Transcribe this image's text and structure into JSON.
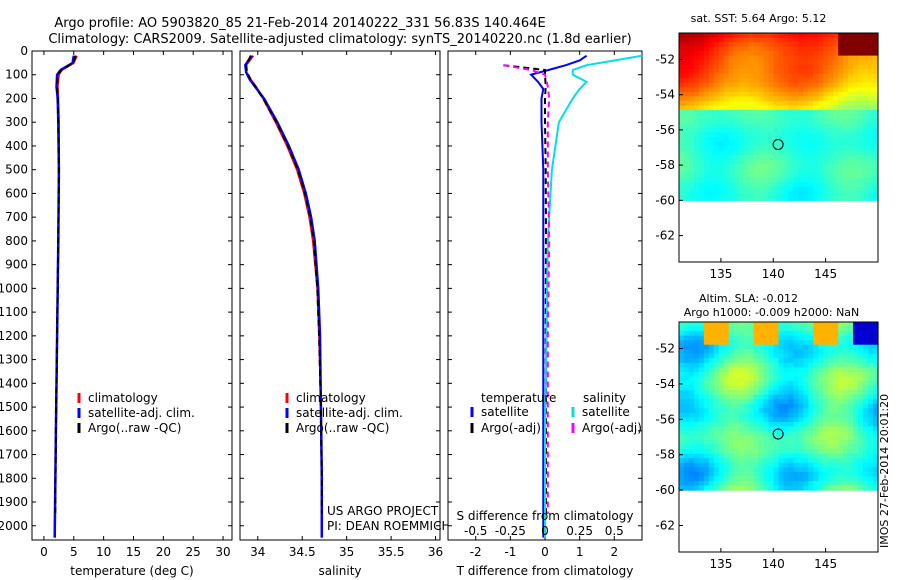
{
  "header": {
    "line1": "Argo profile: AO 5903820_85 21-Feb-2014 20140222_331 56.83S 140.464E",
    "line2": "Climatology: CARS2009. Satellite-adjusted climatology: synTS_20140220.nc (1.8d earlier)"
  },
  "watermark": "IMOS 27-Feb-2014 20:01:20",
  "colors": {
    "climatology": "#ff0000",
    "satellite": "#0000ff",
    "argo": "#000000",
    "sal_satellite": "#00e0e0",
    "sal_argo": "#ff00ff"
  },
  "depth_ticks": [
    0,
    100,
    200,
    300,
    400,
    500,
    600,
    700,
    800,
    900,
    1000,
    1100,
    1200,
    1300,
    1400,
    1500,
    1600,
    1700,
    1800,
    1900,
    2000
  ],
  "chart_data": [
    {
      "type": "line",
      "id": "temperature",
      "xlabel": "temperature (deg C)",
      "xticks": [
        0,
        5,
        10,
        15,
        20,
        25,
        30
      ],
      "xlim": [
        -2,
        31.5
      ],
      "ylim": [
        0,
        2060
      ],
      "legend": [
        "climatology",
        "satellite-adj. clim.",
        "Argo(..raw -QC)"
      ],
      "series": [
        {
          "name": "climatology",
          "depth": [
            20,
            50,
            80,
            100,
            150,
            200,
            300,
            500,
            800,
            1200,
            1600,
            2050
          ],
          "values": [
            5.5,
            5.0,
            3.0,
            2.5,
            2.3,
            2.4,
            2.5,
            2.5,
            2.4,
            2.2,
            2.0,
            1.8
          ]
        },
        {
          "name": "satellite-adj. clim.",
          "depth": [
            20,
            50,
            80,
            100,
            150,
            200,
            300,
            500,
            800,
            1200,
            1600,
            2050
          ],
          "values": [
            5.0,
            4.8,
            2.8,
            2.2,
            2.1,
            2.3,
            2.4,
            2.5,
            2.4,
            2.2,
            2.0,
            1.8
          ]
        },
        {
          "name": "Argo(..raw -QC)",
          "depth": [
            20,
            50,
            80,
            100,
            150,
            200,
            300,
            500,
            800,
            1200,
            1600,
            1950
          ],
          "values": [
            5.3,
            4.9,
            2.9,
            2.3,
            2.2,
            2.3,
            2.4,
            2.5,
            2.4,
            2.2,
            2.0,
            1.9
          ]
        }
      ]
    },
    {
      "type": "line",
      "id": "salinity",
      "xlabel": "salinity",
      "xticks": [
        34,
        34.5,
        35,
        35.5,
        36
      ],
      "xlim": [
        33.8,
        36.05
      ],
      "ylim": [
        0,
        2060
      ],
      "legend": [
        "climatology",
        "satellite-adj. clim.",
        "Argo(..raw -QC)"
      ],
      "annotation": [
        "US ARGO PROJECT",
        "PI: DEAN ROEMMICH"
      ],
      "series": [
        {
          "name": "climatology",
          "depth": [
            20,
            60,
            90,
            120,
            150,
            200,
            300,
            400,
            500,
            600,
            700,
            800,
            1000,
            1200,
            1500,
            1800,
            2050
          ],
          "values": [
            33.95,
            33.87,
            33.87,
            33.92,
            33.98,
            34.06,
            34.2,
            34.33,
            34.44,
            34.52,
            34.58,
            34.62,
            34.67,
            34.69,
            34.71,
            34.72,
            34.72
          ]
        },
        {
          "name": "satellite-adj. clim.",
          "depth": [
            20,
            60,
            90,
            120,
            150,
            200,
            300,
            400,
            500,
            600,
            700,
            800,
            1000,
            1200,
            1500,
            1800,
            2050
          ],
          "values": [
            33.93,
            33.86,
            33.87,
            33.91,
            33.97,
            34.07,
            34.22,
            34.35,
            34.46,
            34.54,
            34.6,
            34.64,
            34.68,
            34.7,
            34.71,
            34.72,
            34.72
          ]
        },
        {
          "name": "Argo(..raw -QC)",
          "depth": [
            20,
            60,
            90,
            120,
            150,
            200,
            300,
            400,
            500,
            600,
            700,
            800,
            1000,
            1200,
            1500,
            1800,
            1950
          ],
          "values": [
            33.92,
            33.87,
            33.88,
            33.92,
            33.97,
            34.06,
            34.21,
            34.34,
            34.45,
            34.53,
            34.59,
            34.63,
            34.67,
            34.69,
            34.71,
            34.72,
            34.72
          ]
        }
      ]
    },
    {
      "type": "line",
      "id": "difference",
      "xlabel": "T difference from climatology",
      "xlabel_top": "S difference from climatology",
      "xticks": [
        -2,
        -1,
        0,
        1,
        2
      ],
      "xticks_top": [
        -0.5,
        -0.25,
        0,
        0.25,
        0.5
      ],
      "xlim": [
        -2.8,
        2.8
      ],
      "ylim": [
        0,
        2060
      ],
      "legend": {
        "temperature_header": "temperature",
        "salinity_header": "salinity",
        "items": [
          "satellite",
          "Argo(-adj)",
          "satellite",
          "Argo(-adj)"
        ]
      },
      "series": [
        {
          "name": "temperature satellite",
          "depth": [
            20,
            40,
            60,
            80,
            100,
            130,
            160,
            200,
            300,
            500,
            800,
            1200,
            1600,
            2050
          ],
          "values": [
            1.2,
            1.0,
            0.6,
            0.1,
            -0.4,
            -0.2,
            -0.05,
            -0.1,
            -0.1,
            -0.05,
            -0.05,
            -0.05,
            -0.05,
            -0.05
          ]
        },
        {
          "name": "temperature Argo(-adj)",
          "depth": [
            60,
            70,
            80,
            100,
            150,
            200,
            300,
            500,
            800,
            1200,
            1600,
            1950
          ],
          "values": [
            -1.2,
            -0.6,
            0.0,
            0.0,
            0.02,
            0.0,
            0.0,
            0.02,
            0.03,
            0.02,
            0.03,
            0.03
          ]
        },
        {
          "name": "salinity satellite",
          "depth": [
            20,
            40,
            60,
            80,
            100,
            130,
            160,
            200,
            300,
            500,
            800,
            1200,
            1600,
            2050
          ],
          "values": [
            0.7,
            0.5,
            0.3,
            0.2,
            0.2,
            0.3,
            0.25,
            0.2,
            0.1,
            0.05,
            0.02,
            0.01,
            0.0,
            0.0
          ]
        },
        {
          "name": "salinity Argo(-adj)",
          "depth": [
            60,
            80,
            100,
            150,
            200,
            300,
            500,
            800,
            1200,
            1600,
            1950
          ],
          "values": [
            -0.3,
            -0.1,
            0.0,
            0.02,
            0.03,
            0.02,
            0.02,
            0.03,
            0.02,
            0.02,
            0.02
          ]
        }
      ]
    },
    {
      "type": "heatmap",
      "id": "sst_map",
      "title": "sat. SST: 5.64 Argo: 5.12",
      "xticks": [
        135,
        140,
        145
      ],
      "yticks": [
        -52,
        -54,
        -56,
        -58,
        -60,
        -62
      ],
      "xlim": [
        131,
        150
      ],
      "ylim": [
        -63.5,
        -50.5
      ],
      "marker": {
        "lon": 140.464,
        "lat": -56.83
      }
    },
    {
      "type": "heatmap",
      "id": "sla_map",
      "title_line1": "Altim. SLA: -0.012",
      "title_line2": "Argo h1000: -0.009 h2000: NaN",
      "xticks": [
        135,
        140,
        145
      ],
      "yticks": [
        -52,
        -54,
        -56,
        -58,
        -60,
        -62
      ],
      "xlim": [
        131,
        150
      ],
      "ylim": [
        -63.5,
        -50.5
      ],
      "marker": {
        "lon": 140.464,
        "lat": -56.83
      }
    }
  ]
}
